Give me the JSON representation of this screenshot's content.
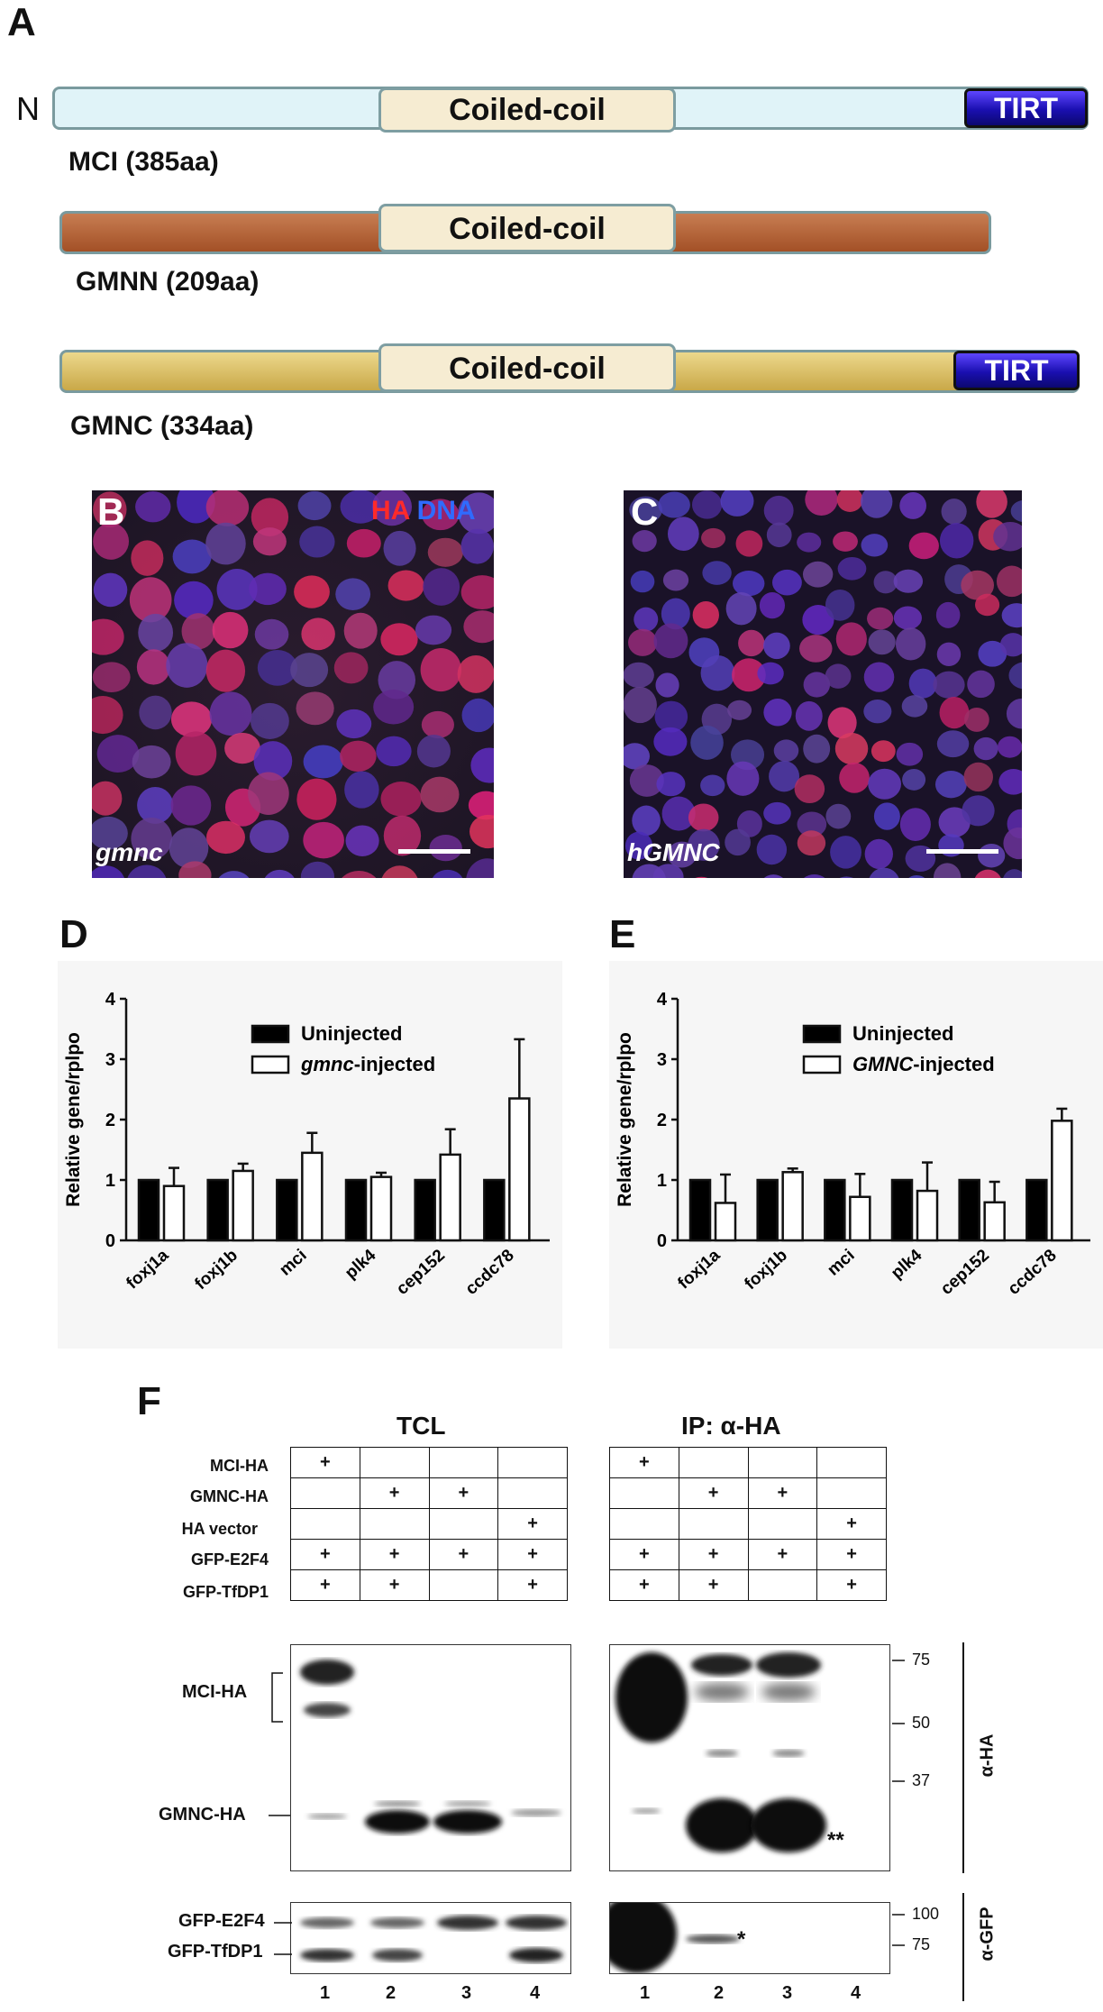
{
  "panelA": {
    "letter": "A",
    "n_terminus": "N",
    "coiled_coil": "Coiled-coil",
    "tirt": "TIRT",
    "proteins": [
      {
        "name": "MCI (385aa)",
        "color": "#e0f3f8",
        "has_tirt": true
      },
      {
        "name": "GMNN (209aa)",
        "color": "#b5643a",
        "has_tirt": false
      },
      {
        "name": "GMNC (334aa)",
        "color": "#dcc070",
        "has_tirt": true
      }
    ]
  },
  "panelB": {
    "letter": "B",
    "sample": "gmnc",
    "stain_ha": "HA",
    "stain_dna": "DNA"
  },
  "panelC": {
    "letter": "C",
    "sample": "hGMNC"
  },
  "panelD": {
    "letter": "D",
    "chart_data": {
      "type": "bar",
      "ylabel": "Relative gene/rplpo",
      "ylim": [
        0,
        4
      ],
      "yticks": [
        0,
        1,
        2,
        3,
        4
      ],
      "categories": [
        "foxj1a",
        "foxj1b",
        "mci",
        "plk4",
        "cep152",
        "ccdc78"
      ],
      "series": [
        {
          "name": "Uninjected",
          "color": "#000000",
          "values": [
            1,
            1,
            1,
            1,
            1,
            1
          ],
          "errors": [
            0,
            0,
            0,
            0,
            0,
            0
          ]
        },
        {
          "name": "gmnc-injected",
          "color": "#ffffff",
          "values": [
            0.9,
            1.15,
            1.45,
            1.05,
            1.42,
            2.35
          ],
          "errors": [
            0.3,
            0.12,
            0.33,
            0.07,
            0.42,
            0.98
          ]
        }
      ],
      "legend": {
        "uninjected": "Uninjected",
        "injected_italic": "gmnc",
        "injected_suffix": "-injected"
      }
    }
  },
  "panelE": {
    "letter": "E",
    "chart_data": {
      "type": "bar",
      "ylabel": "Relative gene/rplpo",
      "ylim": [
        0,
        4
      ],
      "yticks": [
        0,
        1,
        2,
        3,
        4
      ],
      "categories": [
        "foxj1a",
        "foxj1b",
        "mci",
        "plk4",
        "cep152",
        "ccdc78"
      ],
      "series": [
        {
          "name": "Uninjected",
          "color": "#000000",
          "values": [
            1,
            1,
            1,
            1,
            1,
            1
          ],
          "errors": [
            0,
            0,
            0,
            0,
            0,
            0
          ]
        },
        {
          "name": "GMNC-injected",
          "color": "#ffffff",
          "values": [
            0.62,
            1.13,
            0.72,
            0.82,
            0.63,
            1.98
          ],
          "errors": [
            0.47,
            0.06,
            0.38,
            0.47,
            0.34,
            0.2
          ]
        }
      ],
      "legend": {
        "uninjected": "Uninjected",
        "injected_italic": "GMNC",
        "injected_suffix": "-injected"
      }
    }
  },
  "panelF": {
    "letter": "F",
    "tcl_title": "TCL",
    "ip_title": "IP: α-HA",
    "row_labels": [
      "MCI-HA",
      "GMNC-HA",
      "HA vector",
      "GFP-E2F4",
      "GFP-TfDP1"
    ],
    "plus": "+",
    "grid": [
      [
        1,
        0,
        0,
        0
      ],
      [
        0,
        1,
        1,
        0
      ],
      [
        0,
        0,
        0,
        1
      ],
      [
        1,
        1,
        1,
        1
      ],
      [
        1,
        1,
        0,
        1
      ]
    ],
    "band_labels": {
      "mci_ha": "MCI-HA",
      "gmnc_ha": "GMNC-HA",
      "gfp_e2f4": "GFP-E2F4",
      "gfp_tfdp1": "GFP-TfDP1"
    },
    "mw_ha": [
      "75",
      "50",
      "37"
    ],
    "mw_gfp": [
      "100",
      "75"
    ],
    "antibody_ha": "α-HA",
    "antibody_gfp": "α-GFP",
    "double_star": "**",
    "single_star": "*",
    "lanes": [
      "1",
      "2",
      "3",
      "4"
    ]
  }
}
